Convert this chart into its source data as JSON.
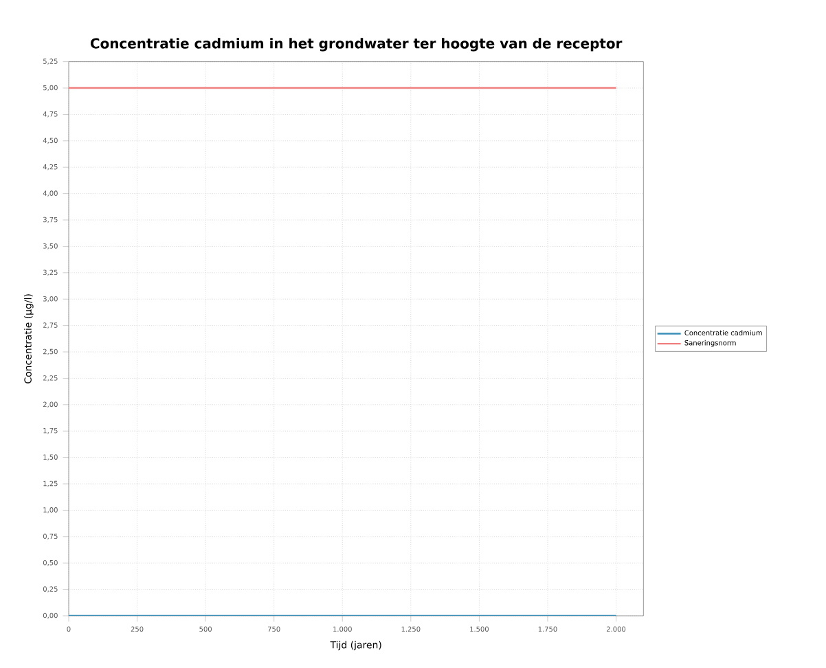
{
  "chart_data": {
    "type": "line",
    "title": "Concentratie cadmium in het grondwater ter hoogte van de receptor",
    "xlabel": "Tijd (jaren)",
    "ylabel": "Concentratie (µg/l)",
    "xlim": [
      0,
      2100
    ],
    "ylim": [
      0,
      5.25
    ],
    "xticks": [
      0,
      250,
      500,
      750,
      {
        "value": 1000,
        "label": "1.000"
      },
      {
        "value": 1250,
        "label": "1.250"
      },
      {
        "value": 1500,
        "label": "1.500"
      },
      {
        "value": 1750,
        "label": "1.750"
      },
      {
        "value": 2000,
        "label": "2.000"
      }
    ],
    "yticks": [
      {
        "value": 0,
        "label": "0,00"
      },
      {
        "value": 0.25,
        "label": "0,25"
      },
      {
        "value": 0.5,
        "label": "0,50"
      },
      {
        "value": 0.75,
        "label": "0,75"
      },
      {
        "value": 1,
        "label": "1,00"
      },
      {
        "value": 1.25,
        "label": "1,25"
      },
      {
        "value": 1.5,
        "label": "1,50"
      },
      {
        "value": 1.75,
        "label": "1,75"
      },
      {
        "value": 2,
        "label": "2,00"
      },
      {
        "value": 2.25,
        "label": "2,25"
      },
      {
        "value": 2.5,
        "label": "2,50"
      },
      {
        "value": 2.75,
        "label": "2,75"
      },
      {
        "value": 3,
        "label": "3,00"
      },
      {
        "value": 3.25,
        "label": "3,25"
      },
      {
        "value": 3.5,
        "label": "3,50"
      },
      {
        "value": 3.75,
        "label": "3,75"
      },
      {
        "value": 4,
        "label": "4,00"
      },
      {
        "value": 4.25,
        "label": "4,25"
      },
      {
        "value": 4.5,
        "label": "4,50"
      },
      {
        "value": 4.75,
        "label": "4,75"
      },
      {
        "value": 5,
        "label": "5,00"
      },
      {
        "value": 5.25,
        "label": "5,25"
      }
    ],
    "x": [
      0,
      2000
    ],
    "series": [
      {
        "name": "Concentratie cadmium",
        "color": "#3a8fb7",
        "values": [
          0,
          0
        ]
      },
      {
        "name": "Saneringsnorm",
        "color": "#f08080",
        "values": [
          5,
          5
        ]
      }
    ],
    "grid": true,
    "legend": "right",
    "marker": "none",
    "line_style": "solid"
  }
}
